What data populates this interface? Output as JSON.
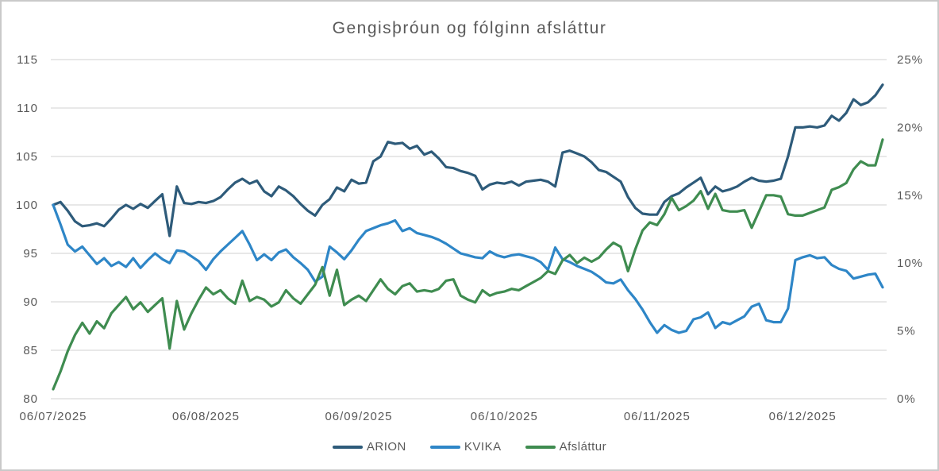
{
  "title": "Gengisþróun og fólginn afsláttur",
  "colors": {
    "arion": "#2e5b7a",
    "kvika": "#2e86c7",
    "afslattur": "#3f8c50",
    "grid": "#d9d9d9",
    "text": "#595959",
    "frame": "#c9c9c9"
  },
  "legend": {
    "items": [
      {
        "label": "ARION"
      },
      {
        "label": "KVIKA"
      },
      {
        "label": "Afsláttur"
      }
    ]
  },
  "chart_data": {
    "type": "line",
    "title": "Gengisþróun og fólginn afsláttur",
    "grid": true,
    "legend_position": "bottom",
    "x_tick_labels": [
      "06/07/2025",
      "06/08/2025",
      "06/09/2025",
      "06/10/2025",
      "06/11/2025",
      "06/12/2025"
    ],
    "x_tick_indices": [
      0,
      21,
      42,
      62,
      83,
      103
    ],
    "left_axis": {
      "min": 80,
      "max": 115,
      "ticks": [
        80,
        85,
        90,
        95,
        100,
        105,
        110,
        115
      ]
    },
    "right_axis": {
      "min": 0,
      "max": 25,
      "tick_values": [
        0,
        5,
        10,
        15,
        20,
        25
      ],
      "tick_labels": [
        "0%",
        "5%",
        "10%",
        "15%",
        "20%",
        "25%"
      ]
    },
    "series": [
      {
        "name": "ARION",
        "axis": "left",
        "color": "#2e5b7a",
        "values": [
          100.0,
          100.3,
          99.4,
          98.3,
          97.8,
          97.9,
          98.1,
          97.8,
          98.6,
          99.5,
          100.0,
          99.6,
          100.1,
          99.7,
          100.4,
          101.1,
          96.8,
          101.9,
          100.2,
          100.1,
          100.3,
          100.2,
          100.4,
          100.8,
          101.6,
          102.3,
          102.7,
          102.2,
          102.5,
          101.4,
          100.9,
          101.9,
          101.5,
          100.9,
          100.1,
          99.4,
          98.9,
          100.0,
          100.6,
          101.8,
          101.4,
          102.6,
          102.2,
          102.3,
          104.5,
          105.0,
          106.5,
          106.3,
          106.4,
          105.8,
          106.1,
          105.2,
          105.5,
          104.8,
          103.9,
          103.8,
          103.5,
          103.3,
          103.0,
          101.6,
          102.1,
          102.3,
          102.2,
          102.4,
          102.0,
          102.4,
          102.5,
          102.6,
          102.4,
          101.9,
          105.4,
          105.6,
          105.3,
          105.0,
          104.4,
          103.6,
          103.4,
          102.9,
          102.4,
          100.8,
          99.7,
          99.1,
          99.0,
          99.0,
          100.3,
          100.9,
          101.2,
          101.8,
          102.3,
          102.8,
          101.1,
          101.9,
          101.4,
          101.6,
          101.9,
          102.4,
          102.8,
          102.5,
          102.4,
          102.5,
          102.7,
          105.0,
          108.0,
          108.0,
          108.1,
          108.0,
          108.2,
          109.2,
          108.7,
          109.5,
          110.9,
          110.3,
          110.6,
          111.3,
          112.4
        ]
      },
      {
        "name": "KVIKA",
        "axis": "left",
        "color": "#2e86c7",
        "values": [
          100.0,
          98.0,
          95.9,
          95.2,
          95.7,
          94.8,
          93.9,
          94.5,
          93.7,
          94.1,
          93.6,
          94.5,
          93.5,
          94.3,
          95.0,
          94.4,
          94.0,
          95.3,
          95.2,
          94.7,
          94.2,
          93.3,
          94.4,
          95.2,
          95.9,
          96.6,
          97.3,
          95.9,
          94.3,
          94.9,
          94.3,
          95.1,
          95.4,
          94.6,
          94.0,
          93.3,
          92.1,
          92.6,
          95.7,
          95.1,
          94.4,
          95.3,
          96.4,
          97.3,
          97.6,
          97.9,
          98.1,
          98.4,
          97.3,
          97.6,
          97.1,
          96.9,
          96.7,
          96.4,
          96.0,
          95.5,
          95.0,
          94.8,
          94.6,
          94.5,
          95.2,
          94.8,
          94.6,
          94.8,
          94.9,
          94.7,
          94.5,
          94.1,
          93.3,
          95.6,
          94.4,
          94.1,
          93.7,
          93.4,
          93.1,
          92.6,
          92.0,
          91.9,
          92.3,
          91.2,
          90.3,
          89.2,
          87.9,
          86.8,
          87.6,
          87.1,
          86.8,
          87.0,
          88.2,
          88.4,
          88.9,
          87.3,
          87.9,
          87.7,
          88.1,
          88.5,
          89.5,
          89.8,
          88.1,
          87.9,
          87.9,
          89.3,
          94.3,
          94.6,
          94.8,
          94.5,
          94.6,
          93.8,
          93.4,
          93.2,
          92.4,
          92.6,
          92.8,
          92.9,
          91.5
        ]
      },
      {
        "name": "Afsláttur",
        "axis": "right",
        "unit": "%",
        "color": "#3f8c50",
        "values": [
          0.7,
          2.0,
          3.5,
          4.7,
          5.6,
          4.8,
          5.7,
          5.2,
          6.3,
          6.9,
          7.5,
          6.6,
          7.1,
          6.4,
          6.9,
          7.4,
          3.7,
          7.2,
          5.1,
          6.3,
          7.3,
          8.2,
          7.7,
          8.0,
          7.4,
          7.0,
          8.7,
          7.2,
          7.5,
          7.3,
          6.8,
          7.1,
          8.0,
          7.4,
          7.0,
          7.7,
          8.4,
          9.7,
          7.6,
          9.5,
          6.9,
          7.3,
          7.6,
          7.2,
          8.0,
          8.8,
          8.1,
          7.7,
          8.3,
          8.5,
          7.9,
          8.0,
          7.9,
          8.1,
          8.7,
          8.8,
          7.6,
          7.3,
          7.1,
          8.0,
          7.6,
          7.8,
          7.9,
          8.1,
          8.0,
          8.3,
          8.6,
          8.9,
          9.4,
          9.2,
          10.2,
          10.6,
          10.0,
          10.4,
          10.1,
          10.4,
          11.0,
          11.5,
          11.2,
          9.4,
          11.0,
          12.4,
          13.0,
          12.8,
          13.6,
          14.8,
          13.9,
          14.2,
          14.6,
          15.3,
          14.0,
          15.1,
          13.9,
          13.8,
          13.8,
          13.9,
          12.6,
          13.8,
          15.0,
          15.0,
          14.9,
          13.6,
          13.5,
          13.5,
          13.7,
          13.9,
          14.1,
          15.4,
          15.6,
          15.9,
          16.9,
          17.5,
          17.2,
          17.2,
          19.1
        ]
      }
    ]
  }
}
